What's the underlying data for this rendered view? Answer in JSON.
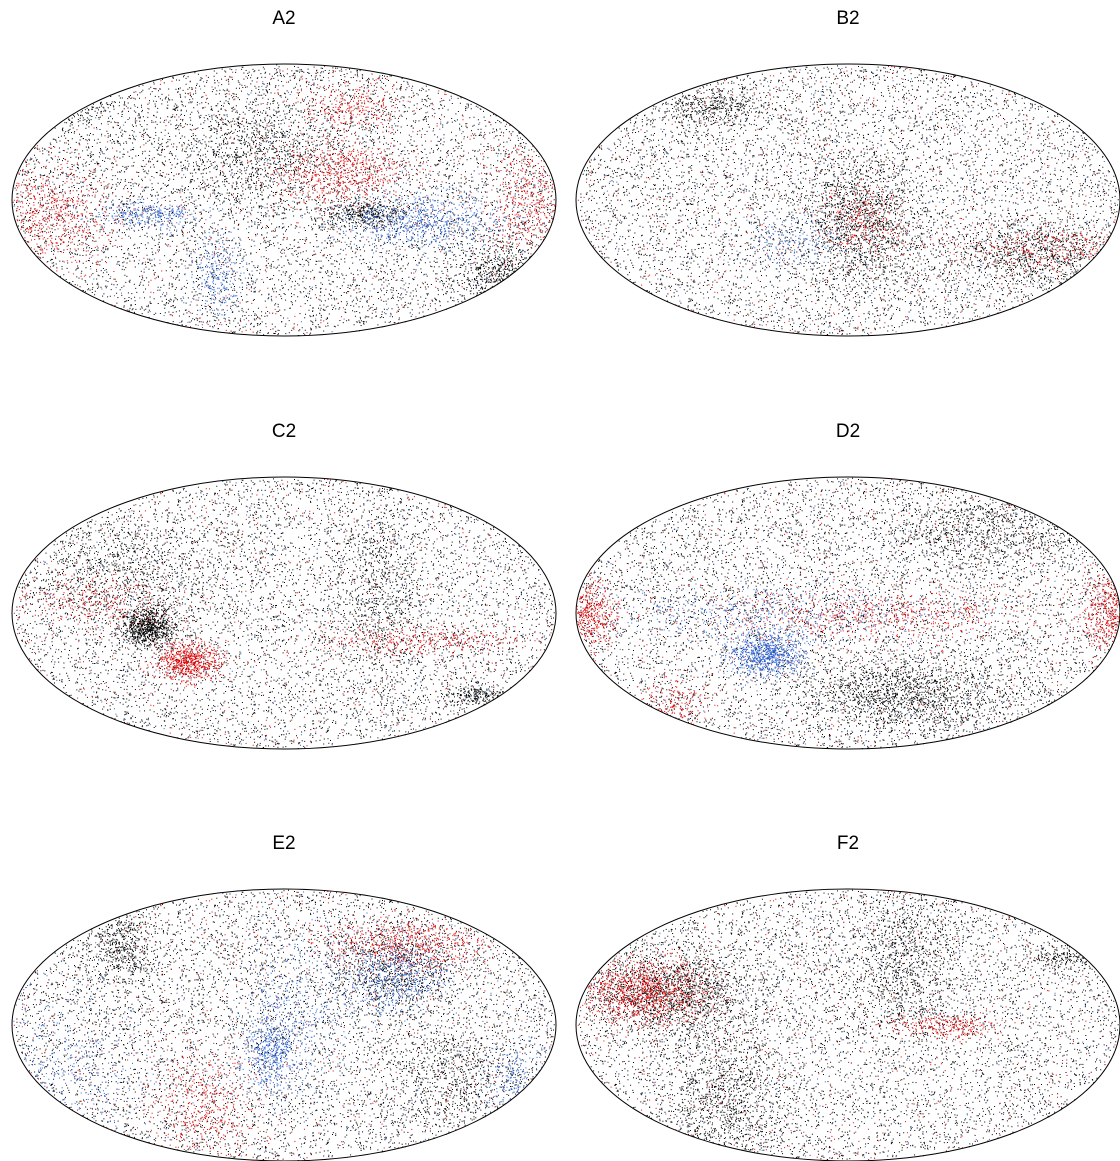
{
  "panels": [
    {
      "title": "A2"
    },
    {
      "title": "B2"
    },
    {
      "title": "C2"
    },
    {
      "title": "D2"
    },
    {
      "title": "E2"
    },
    {
      "title": "F2"
    }
  ]
}
